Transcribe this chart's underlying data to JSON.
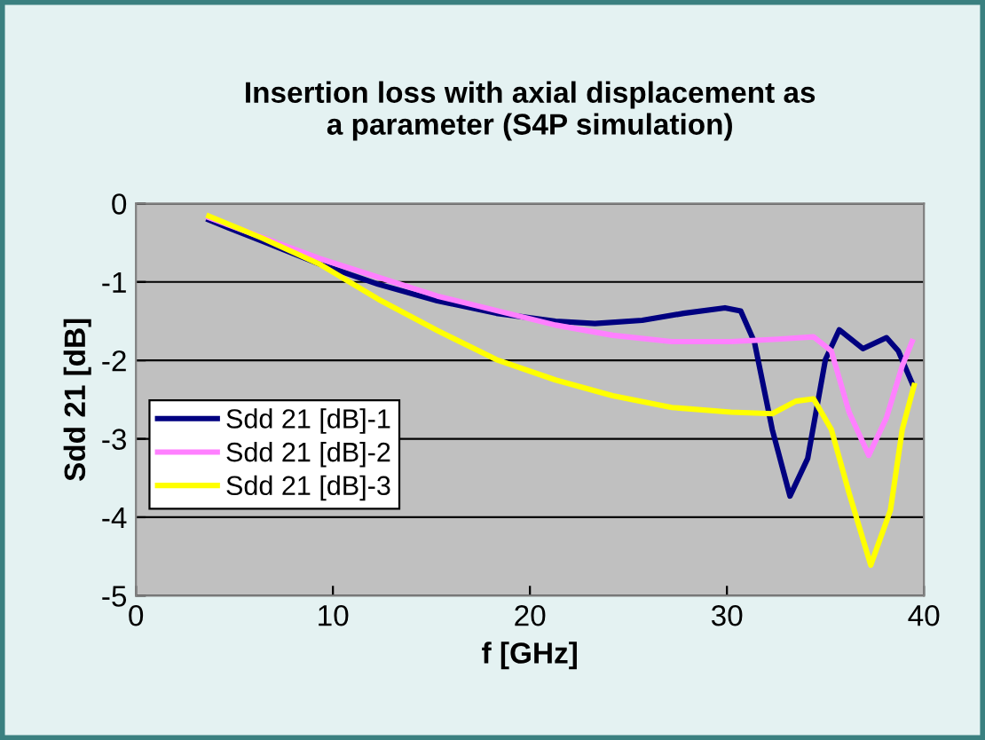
{
  "chart_data": {
    "type": "line",
    "title": "Insertion loss with axial displacement as\na parameter (S4P simulation)",
    "xlabel": "f [GHz]",
    "ylabel": "Sdd 21 [dB]",
    "xlim": [
      0,
      40
    ],
    "xticks": [
      0,
      10,
      20,
      30,
      40
    ],
    "ylim": [
      -5,
      0
    ],
    "yticks": [
      -5,
      -4,
      -3,
      -2,
      -1,
      0
    ],
    "grid": "y",
    "legend": "left",
    "marker": "none",
    "line_style": "solid",
    "series": [
      {
        "name": "Sdd 21 [dB]-1",
        "color": "#000080",
        "x": [
          3.7,
          6.4,
          9.3,
          12.3,
          15.3,
          18.3,
          21.3,
          23.3,
          25.7,
          27.8,
          29.9,
          30.7,
          31.4,
          32.3,
          33.2,
          34.1,
          35.0,
          35.7,
          36.9,
          38.1,
          38.7,
          39.4
        ],
        "values": [
          -0.21,
          -0.48,
          -0.77,
          -1.03,
          -1.24,
          -1.4,
          -1.5,
          -1.53,
          -1.49,
          -1.4,
          -1.33,
          -1.37,
          -1.77,
          -2.88,
          -3.73,
          -3.25,
          -1.99,
          -1.61,
          -1.85,
          -1.71,
          -1.88,
          -2.29
        ]
      },
      {
        "name": "Sdd 21 [dB]-2",
        "color": "#ff80ff",
        "x": [
          3.7,
          9.3,
          15.3,
          21.3,
          24.2,
          27.2,
          30.2,
          32.6,
          34.4,
          35.3,
          36.2,
          37.2,
          38.1,
          38.9,
          39.4
        ],
        "values": [
          -0.18,
          -0.7,
          -1.18,
          -1.55,
          -1.68,
          -1.76,
          -1.76,
          -1.73,
          -1.7,
          -1.88,
          -2.66,
          -3.21,
          -2.73,
          -2.07,
          -1.76
        ]
      },
      {
        "name": "Sdd 21 [dB]-3",
        "color": "#ffff00",
        "x": [
          3.7,
          6.4,
          9.3,
          12.3,
          15.3,
          18.3,
          21.3,
          24.2,
          27.2,
          30.2,
          32.3,
          33.5,
          34.4,
          35.3,
          36.2,
          37.3,
          38.3,
          38.9,
          39.5
        ],
        "values": [
          -0.16,
          -0.44,
          -0.77,
          -1.22,
          -1.62,
          -1.99,
          -2.25,
          -2.45,
          -2.6,
          -2.66,
          -2.68,
          -2.52,
          -2.49,
          -2.88,
          -3.69,
          -4.61,
          -3.91,
          -2.88,
          -2.32
        ]
      }
    ]
  }
}
